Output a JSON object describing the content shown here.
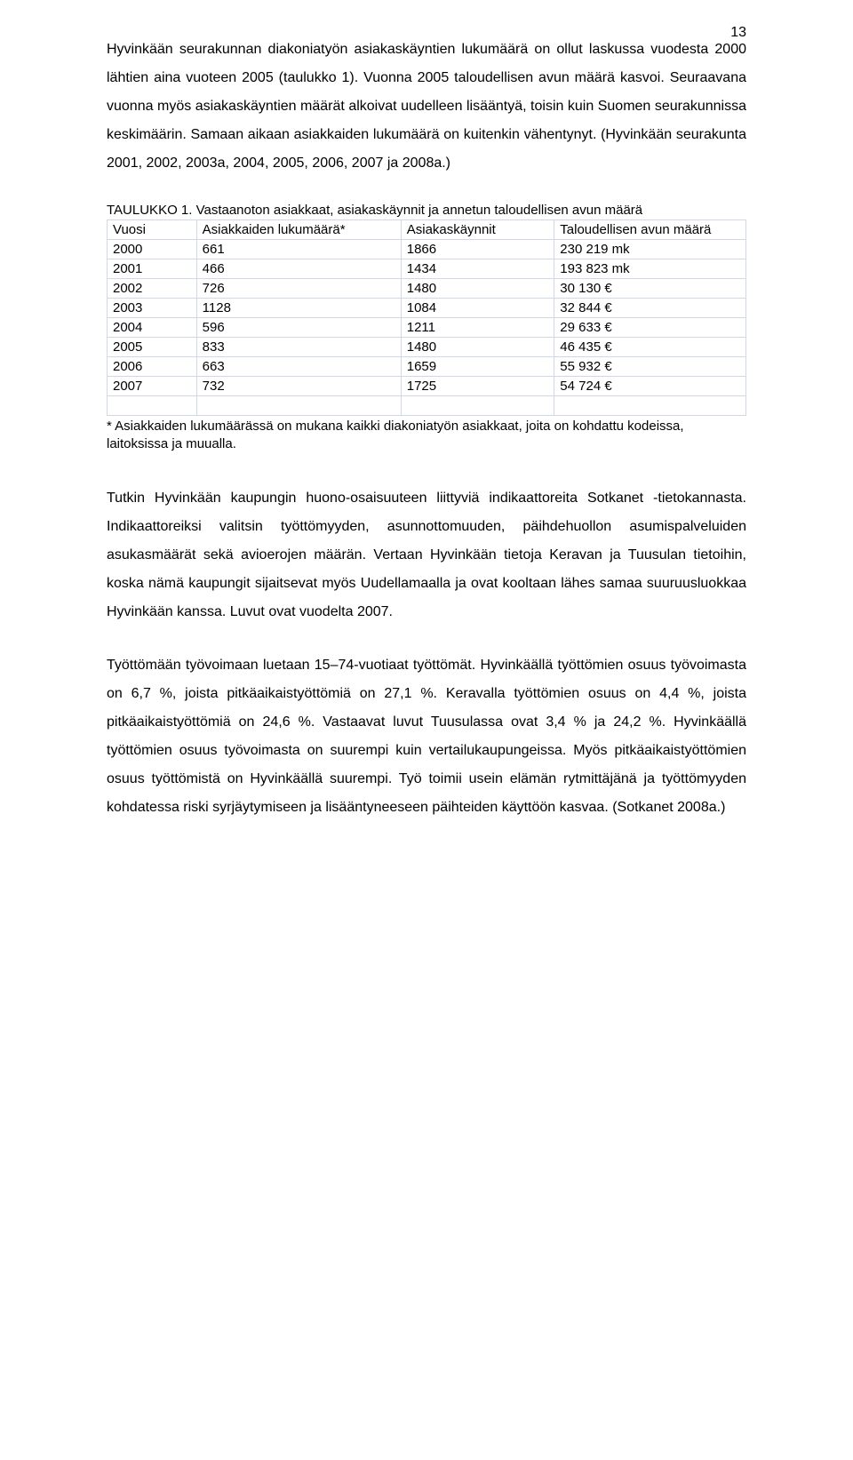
{
  "page_number": "13",
  "paragraphs": {
    "p1": "Hyvinkään seurakunnan diakoniatyön asiakaskäyntien lukumäärä on ollut laskussa vuodesta 2000 lähtien aina vuoteen 2005 (taulukko 1). Vuonna 2005 taloudellisen avun määrä kasvoi. Seuraavana vuonna myös asiakaskäyntien määrät alkoivat uudelleen lisääntyä, toisin kuin Suomen seurakunnissa keskimäärin. Samaan aikaan asiakkaiden lukumäärä on kuitenkin vähentynyt. (Hyvinkään seurakunta 2001, 2002, 2003a, 2004, 2005, 2006, 2007 ja 2008a.)",
    "p2": "Tutkin Hyvinkään kaupungin huono-osaisuuteen liittyviä indikaattoreita Sotkanet -tietokannasta. Indikaattoreiksi valitsin työttömyyden, asunnottomuuden, päihdehuollon asumispalveluiden asukasmäärät sekä avioerojen määrän. Vertaan Hyvinkään tietoja Keravan ja Tuusulan tietoihin, koska nämä kaupungit sijaitsevat myös Uudellamaalla ja ovat kooltaan lähes samaa suuruusluokkaa Hyvinkään kanssa. Luvut ovat vuodelta 2007.",
    "p3": "Työttömään työvoimaan luetaan 15–74-vuotiaat työttömät. Hyvinkäällä työttömien osuus työvoimasta on 6,7 %, joista pitkäaikaistyöttömiä on 27,1 %. Keravalla työttömien osuus on 4,4 %, joista pitkäaikaistyöttömiä on 24,6 %. Vastaavat luvut Tuusulassa ovat 3,4 % ja 24,2 %. Hyvinkäällä työttömien osuus työvoimasta on suurempi kuin vertailukaupungeissa. Myös pitkäaikaistyöttömien osuus työttömistä on Hyvinkäällä suurempi. Työ toimii usein elämän rytmittäjänä ja työttömyyden kohdatessa riski syrjäytymiseen ja lisääntyneeseen päihteiden käyttöön kasvaa. (Sotkanet 2008a.)"
  },
  "table": {
    "caption": "TAULUKKO 1. Vastaanoton asiakkaat, asiakaskäynnit ja annetun taloudellisen avun määrä",
    "border_color": "#d0d7e5",
    "headers": [
      "Vuosi",
      "Asiakkaiden lukumäärä*",
      "Asiakaskäynnit",
      "Taloudellisen avun määrä"
    ],
    "col_widths": [
      "14%",
      "32%",
      "24%",
      "30%"
    ],
    "rows": [
      [
        "2000",
        "661",
        "1866",
        "230 219 mk"
      ],
      [
        "2001",
        "466",
        "1434",
        "193 823 mk"
      ],
      [
        "2002",
        "726",
        "1480",
        "30 130 €"
      ],
      [
        "2003",
        "1128",
        "1084",
        "32 844 €"
      ],
      [
        "2004",
        "596",
        "1211",
        "29 633 €"
      ],
      [
        "2005",
        "833",
        "1480",
        "46 435 €"
      ],
      [
        "2006",
        "663",
        "1659",
        "55 932 €"
      ],
      [
        "2007",
        "732",
        "1725",
        "54 724 €"
      ],
      [
        "",
        "",
        "",
        ""
      ]
    ],
    "footnote": "* Asiakkaiden lukumäärässä on mukana kaikki diakoniatyön asiakkaat, joita on kohdattu kodeissa, laitoksissa ja muualla."
  },
  "colors": {
    "text": "#000000",
    "background": "#ffffff"
  },
  "font": {
    "family": "Arial",
    "body_size_pt": 12,
    "line_height": 2.0
  }
}
